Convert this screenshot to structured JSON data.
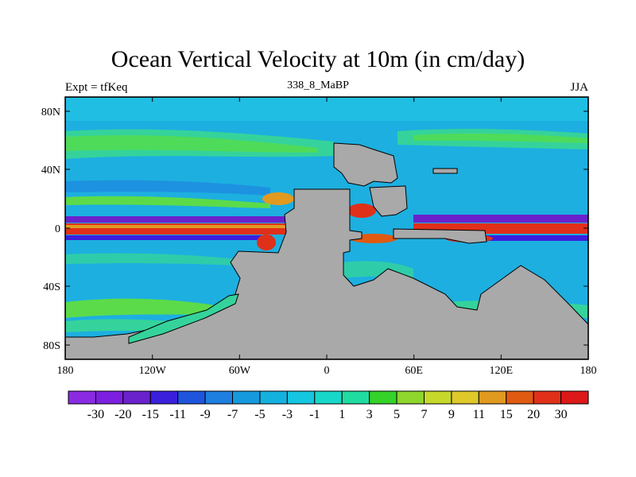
{
  "title": "Ocean Vertical Velocity at 10m (in cm/day)",
  "subtitle_left": "Expt = tfKeq",
  "subtitle_center": "338_8_MaBP",
  "subtitle_right": "JJA",
  "axes": {
    "lon_ticks": [
      "180",
      "120W",
      "60W",
      "0",
      "60E",
      "120E",
      "180"
    ],
    "lat_ticks": [
      "80N",
      "40N",
      "0",
      "40S",
      "80S"
    ]
  },
  "colorbar": {
    "labels": [
      "-30",
      "-20",
      "-15",
      "-11",
      "-9",
      "-7",
      "-5",
      "-3",
      "-1",
      "1",
      "3",
      "5",
      "7",
      "9",
      "11",
      "15",
      "20",
      "30"
    ],
    "colors": [
      "#8a2be2",
      "#7d1fe0",
      "#6a22cc",
      "#3a1fdc",
      "#1f55dd",
      "#1e7fe0",
      "#1799dd",
      "#14b1df",
      "#14c6e0",
      "#17d8c8",
      "#20dca0",
      "#35d22a",
      "#8ed52c",
      "#c6d92a",
      "#dec82a",
      "#e09a20",
      "#e05a12",
      "#e0301a",
      "#dd1818"
    ]
  },
  "colors": {
    "land": "#a9a9a9",
    "ocean_base": "#1dafe0"
  }
}
